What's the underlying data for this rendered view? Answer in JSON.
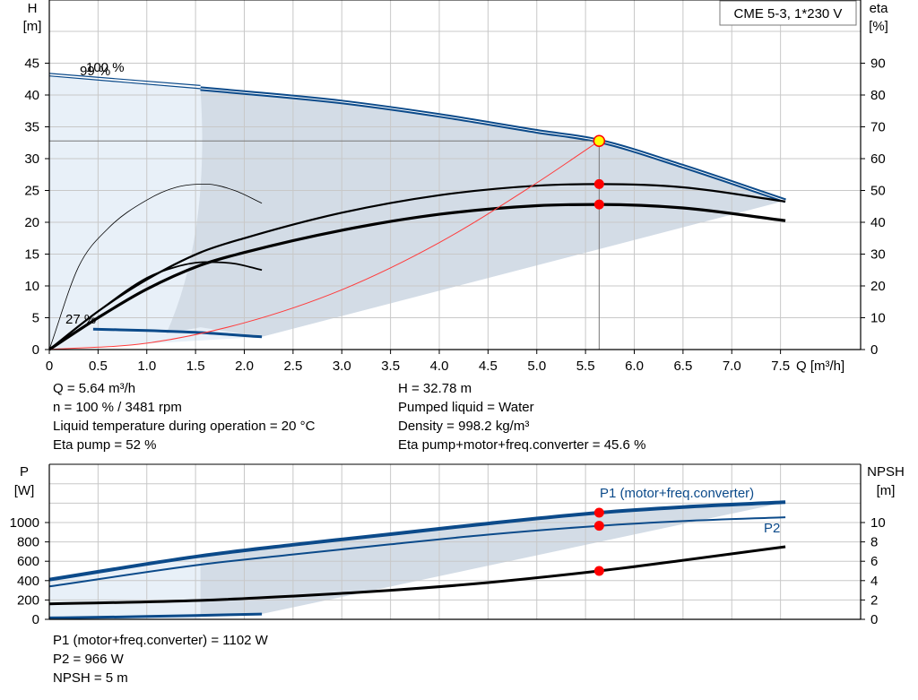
{
  "title_box": "CME 5-3, 1*230 V",
  "colors": {
    "series_blue": "#0b4a8a",
    "area_fill": "#d3dce6",
    "area_light": "#e8f0f8",
    "grid": "#c8c8c8",
    "duty_point": "#ff0000",
    "duty_point_yellow": "#ffff00",
    "system_curve": "#ff3b3b"
  },
  "upper": {
    "ylabel_left": "H",
    "yunit_left": "[m]",
    "ylabel_right": "eta",
    "yunit_right": "[%]",
    "xlabel": "Q [m³/h]",
    "xlim": [
      0,
      8
    ],
    "ylim_left": [
      0,
      50
    ],
    "ylim_right": [
      0,
      100
    ],
    "x_ticks": [
      "0",
      "0.5",
      "1.0",
      "1.5",
      "2.0",
      "2.5",
      "3.0",
      "3.5",
      "4.0",
      "4.5",
      "5.0",
      "5.5",
      "6.0",
      "6.5",
      "7.0",
      "7.5"
    ],
    "y_ticks_left": [
      "0",
      "5",
      "10",
      "15",
      "20",
      "25",
      "30",
      "35",
      "40",
      "45"
    ],
    "y_ticks_right": [
      "0",
      "10",
      "20",
      "30",
      "40",
      "50",
      "60",
      "70",
      "80",
      "90"
    ],
    "curve_labels": [
      "100 %",
      "99 %",
      "27 %"
    ]
  },
  "info_upper": {
    "col1": [
      "Q = 5.64 m³/h",
      "n = 100 % / 3481 rpm",
      "Liquid temperature during operation = 20 °C",
      "Eta pump = 52 %"
    ],
    "col2": [
      "H = 32.78 m",
      "Pumped liquid = Water",
      "Density = 998.2 kg/m³",
      "Eta pump+motor+freq.converter = 45.6 %"
    ]
  },
  "lower": {
    "ylabel_left": "P",
    "yunit_left": "[W]",
    "ylabel_right": "NPSH",
    "yunit_right": "[m]",
    "ylim_left": [
      0,
      1400
    ],
    "ylim_right": [
      0,
      14
    ],
    "y_ticks_left": [
      "0",
      "200",
      "400",
      "600",
      "800",
      "1000"
    ],
    "y_ticks_right": [
      "0",
      "2",
      "4",
      "6",
      "8",
      "10"
    ],
    "series_labels": {
      "p1": "P1 (motor+freq.converter)",
      "p2": "P2"
    }
  },
  "info_lower": [
    "P1 (motor+freq.converter) = 1102 W",
    "P2 = 966 W",
    "NPSH = 5 m"
  ],
  "chart_data": [
    {
      "type": "line",
      "xlabel": "Q [m³/h]",
      "ylabel": "H [m]",
      "ylabel_right": "eta [%]",
      "xlim": [
        0,
        8
      ],
      "ylim": [
        0,
        50
      ],
      "ylim_right": [
        0,
        100
      ],
      "grid": true,
      "series": [
        {
          "name": "100 %",
          "axis": "left",
          "x": [
            1.55,
            2,
            3,
            4,
            5,
            5.64,
            6.5,
            7.55
          ],
          "values": [
            41,
            40.4,
            38.9,
            36.8,
            34.3,
            32.78,
            28.8,
            23.4
          ]
        },
        {
          "name": "99 %",
          "axis": "left",
          "x": [
            0,
            1.55
          ],
          "values": [
            43.0,
            41
          ]
        },
        {
          "axis": "left",
          "x": [
            0,
            1.55
          ],
          "values": [
            43.4,
            41.5
          ]
        },
        {
          "name": "27 %",
          "axis": "left",
          "x": [
            0.45,
            1.0,
            1.5,
            2.18
          ],
          "values": [
            3.2,
            3.0,
            2.7,
            2.0
          ]
        },
        {
          "axis": "right",
          "x": [
            0,
            0.5,
            1.0,
            1.55,
            2,
            3,
            4,
            5,
            5.64,
            6.5,
            7.55
          ],
          "values": [
            0,
            12,
            22,
            30.5,
            35,
            43,
            48.5,
            51.5,
            52,
            51,
            46.5
          ]
        },
        {
          "axis": "right",
          "x": [
            0,
            0.5,
            1.0,
            1.55,
            2,
            3,
            4,
            5,
            5.64,
            6.5,
            7.55
          ],
          "values": [
            0,
            10,
            19,
            26.5,
            30.5,
            37.5,
            42.5,
            45.2,
            45.6,
            44.5,
            40.5
          ]
        },
        {
          "axis": "right",
          "x": [
            0,
            0.3,
            0.6,
            1.0,
            1.3,
            1.6,
            1.9,
            2.18
          ],
          "values": [
            0,
            26,
            38,
            47,
            51,
            52,
            50,
            46
          ]
        },
        {
          "axis": "right",
          "x": [
            0,
            0.5,
            1.0,
            1.3,
            1.6,
            1.9,
            2.18
          ],
          "values": [
            0,
            12,
            22.5,
            26,
            27.5,
            27,
            25
          ]
        },
        {
          "axis": "left",
          "x": [
            0,
            1,
            2,
            3,
            4,
            5,
            5.64
          ],
          "values": [
            0,
            1.0,
            4.2,
            9.4,
            16.8,
            26.2,
            32.78
          ]
        }
      ],
      "duty_points": [
        {
          "x": 5.64,
          "value": 32.78,
          "axis": "left"
        },
        {
          "x": 5.64,
          "value": 52,
          "axis": "right"
        },
        {
          "x": 5.64,
          "value": 45.6,
          "axis": "right"
        }
      ]
    },
    {
      "type": "line",
      "ylabel": "P [W]",
      "ylabel_right": "NPSH [m]",
      "xlim": [
        0,
        8
      ],
      "ylim": [
        0,
        1400
      ],
      "ylim_right": [
        0,
        14
      ],
      "grid": true,
      "series": [
        {
          "name": "P1 (motor+freq.converter)",
          "axis": "left",
          "x": [
            0,
            1.55,
            2.5,
            3.5,
            4.5,
            5.64,
            6.5,
            7.55
          ],
          "values": [
            410,
            655,
            770,
            880,
            990,
            1102,
            1160,
            1210
          ]
        },
        {
          "name": "P2",
          "axis": "left",
          "x": [
            0,
            1.55,
            2.5,
            3.5,
            4.5,
            5.64,
            6.5,
            7.55
          ],
          "values": [
            340,
            565,
            670,
            775,
            875,
            966,
            1015,
            1055
          ]
        },
        {
          "axis": "right",
          "x": [
            0,
            1.55,
            2.5,
            3.5,
            4.5,
            5.64,
            6.5,
            7.55
          ],
          "values": [
            1.6,
            1.95,
            2.4,
            3.0,
            3.8,
            5.0,
            6.1,
            7.5
          ]
        },
        {
          "axis": "left",
          "x": [
            0,
            0.45,
            1.0,
            1.5,
            2.18
          ],
          "values": [
            15,
            20,
            30,
            40,
            55
          ]
        }
      ],
      "duty_points": [
        {
          "x": 5.64,
          "value": 1102,
          "axis": "left"
        },
        {
          "x": 5.64,
          "value": 966,
          "axis": "left"
        },
        {
          "x": 5.64,
          "value": 5.0,
          "axis": "right"
        }
      ]
    }
  ]
}
